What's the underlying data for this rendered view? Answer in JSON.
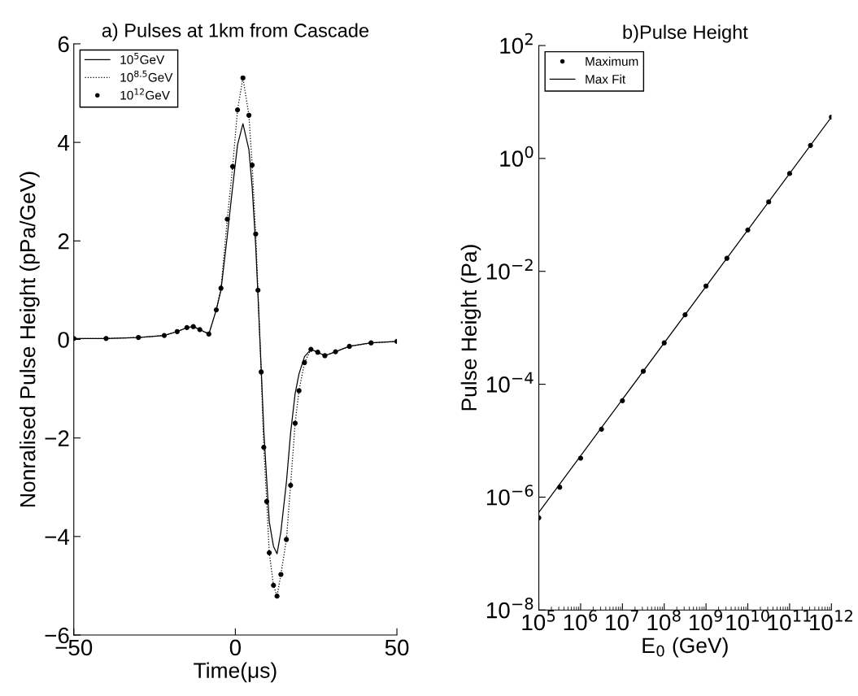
{
  "chart_data": [
    {
      "type": "line",
      "title": "a) Pulses at 1km from Cascade",
      "xlabel": "Time(μs)",
      "ylabel": "Nonralised Pulse Height (pPa/GeV)",
      "x": [
        -50,
        -40,
        -30,
        -22,
        -18,
        -15,
        -13,
        -11,
        -8.2,
        -5.9,
        -4.45,
        -2.5,
        -0.83,
        0.68,
        2.35,
        4.2,
        5.2,
        6.3,
        7.0,
        8.0,
        8.8,
        9.7,
        10.5,
        11.8,
        12.9,
        14.1,
        15.8,
        17.1,
        18.5,
        19.7,
        21.4,
        23.4,
        25.5,
        27.7,
        31,
        35.3,
        42,
        50
      ],
      "series": [
        {
          "name": "10$^{5}$GeV",
          "line_style": "solid",
          "color": "#000000",
          "values": [
            0.02,
            0.02,
            0.04,
            0.08,
            0.16,
            0.24,
            0.26,
            0.2,
            0.11,
            0.6,
            1.0,
            2.1,
            3.1,
            3.95,
            4.38,
            3.85,
            3.1,
            1.9,
            0.9,
            -0.6,
            -1.85,
            -2.85,
            -3.7,
            -4.2,
            -4.35,
            -3.9,
            -2.9,
            -1.9,
            -1.1,
            -0.7,
            -0.35,
            -0.2,
            -0.26,
            -0.33,
            -0.25,
            -0.14,
            -0.07,
            -0.04
          ]
        },
        {
          "name": "10$^{8.5}$GeV",
          "line_style": "dotted",
          "color": "#000000",
          "values": [
            0.02,
            0.02,
            0.04,
            0.08,
            0.16,
            0.24,
            0.26,
            0.2,
            0.11,
            0.6,
            1.04,
            2.44,
            3.51,
            4.66,
            5.31,
            4.55,
            3.54,
            2.14,
            1.0,
            -0.66,
            -2.19,
            -3.29,
            -4.33,
            -4.99,
            -5.21,
            -4.77,
            -4.06,
            -2.96,
            -1.7,
            -1.04,
            -0.47,
            -0.2,
            -0.26,
            -0.33,
            -0.25,
            -0.14,
            -0.07,
            -0.04
          ]
        },
        {
          "name": "10$^{12}$GeV",
          "type": "scatter",
          "marker": "circle",
          "color": "#000000",
          "values": [
            0.02,
            0.02,
            0.04,
            0.08,
            0.16,
            0.24,
            0.26,
            0.2,
            0.11,
            0.6,
            1.04,
            2.44,
            3.51,
            4.66,
            5.31,
            4.55,
            3.54,
            2.14,
            1.0,
            -0.66,
            -2.19,
            -3.29,
            -4.33,
            -4.99,
            -5.21,
            -4.77,
            -4.06,
            -2.96,
            -1.7,
            -1.04,
            -0.47,
            -0.2,
            -0.26,
            -0.33,
            -0.25,
            -0.14,
            -0.07,
            -0.04
          ]
        }
      ],
      "xlim": [
        -50,
        50
      ],
      "xticks": [
        {
          "value": -50,
          "label": "−50"
        },
        0,
        50
      ],
      "ylim": [
        -6,
        6
      ],
      "yticks": [
        {
          "value": -6,
          "label": "−6"
        },
        {
          "value": -4,
          "label": "−4"
        },
        {
          "value": -2,
          "label": "−2"
        },
        0,
        2,
        4,
        6
      ],
      "legend": "top left",
      "grid": false
    },
    {
      "type": "scatter",
      "title": "b)Pulse Height",
      "xlabel": "E$_{0}$ (GeV)",
      "ylabel": "Pulse Height (Pa)",
      "log": "xy",
      "series": [
        {
          "name": "Maximum",
          "marker": "circle",
          "color": "#000000",
          "x": [
            100000.0,
            316000.0,
            1000000.0,
            3160000.0,
            10000000.0,
            31600000.0,
            100000000.0,
            316000000.0,
            1000000000.0,
            3160000000.0,
            10000000000.0,
            31600000000.0,
            100000000000.0,
            316000000000.0,
            1000000000000.0
          ],
          "values": [
            4.3e-07,
            1.5e-06,
            4.9e-06,
            1.6e-05,
            5.1e-05,
            0.00017,
            0.00054,
            0.0017,
            0.0055,
            0.017,
            0.054,
            0.17,
            0.54,
            1.7,
            5.4
          ]
        },
        {
          "name": "Max Fit",
          "type": "line",
          "line_style": "solid",
          "color": "#000000",
          "x": [
            100000.0,
            1000000000000.0
          ],
          "values": [
            5.4e-07,
            5.4
          ]
        }
      ],
      "xlim": [
        100000.0,
        1000000000000.0
      ],
      "xticks": [
        {
          "value": 100000.0,
          "label": "10$^{5}$"
        },
        {
          "value": 1000000.0,
          "label": "10$^{6}$"
        },
        {
          "value": 10000000.0,
          "label": "10$^{7}$"
        },
        {
          "value": 100000000.0,
          "label": "10$^{8}$"
        },
        {
          "value": 1000000000.0,
          "label": "10$^{9}$"
        },
        {
          "value": 10000000000.0,
          "label": "10$^{10}$"
        },
        {
          "value": 100000000000.0,
          "label": "10$^{11}$"
        },
        {
          "value": 1000000000000.0,
          "label": "10$^{12}$"
        }
      ],
      "ylim": [
        1e-08,
        100
      ],
      "yticks": [
        {
          "value": 1e-08,
          "label": "10$^{−8}$"
        },
        {
          "value": 1e-06,
          "label": "10$^{−6}$"
        },
        {
          "value": 0.0001,
          "label": "10$^{−4}$"
        },
        {
          "value": 0.01,
          "label": "10$^{−2}$"
        },
        {
          "value": 1,
          "label": "10$^{0}$"
        },
        {
          "value": 100,
          "label": "10$^{2}$"
        }
      ],
      "legend": "top left",
      "grid": false
    }
  ]
}
